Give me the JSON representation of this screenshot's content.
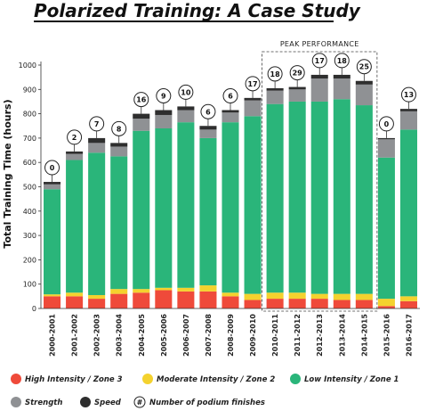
{
  "chart_data": {
    "type": "bar",
    "stacked": true,
    "title": "Polarized Training: A Case Study",
    "ylabel": "Total Training Time (hours)",
    "ylim": [
      0,
      1000
    ],
    "yticks": [
      0,
      100,
      200,
      300,
      400,
      500,
      600,
      700,
      800,
      900,
      1000
    ],
    "categories": [
      "2000-2001",
      "2001-2002",
      "2002-2003",
      "2003-2004",
      "2004-2005",
      "2005-2006",
      "2006-2007",
      "2007-2008",
      "2008-2009",
      "2009-2010",
      "2010-2011",
      "2011-2012",
      "2012-2013",
      "2013-2014",
      "2014-2015",
      "2015-2016",
      "2016-2017"
    ],
    "series": [
      {
        "name": "High Intensity / Zone 3",
        "color": "#ef4a3a",
        "values": [
          50,
          50,
          40,
          60,
          65,
          75,
          70,
          70,
          50,
          35,
          40,
          40,
          40,
          35,
          35,
          10,
          30
        ]
      },
      {
        "name": "Moderate Intensity / Zone 2",
        "color": "#f4d22e",
        "values": [
          8,
          15,
          15,
          20,
          15,
          10,
          15,
          25,
          15,
          25,
          25,
          25,
          20,
          25,
          25,
          30,
          20
        ]
      },
      {
        "name": "Low Intensity / Zone 1",
        "color": "#2ab57a",
        "values": [
          432,
          545,
          585,
          545,
          650,
          655,
          680,
          605,
          700,
          730,
          775,
          785,
          790,
          800,
          775,
          580,
          685
        ]
      },
      {
        "name": "Strength",
        "color": "#8f9194",
        "values": [
          20,
          25,
          40,
          40,
          50,
          55,
          50,
          35,
          40,
          65,
          55,
          50,
          95,
          85,
          85,
          75,
          75
        ]
      },
      {
        "name": "Speed",
        "color": "#2e2e2e",
        "values": [
          10,
          10,
          20,
          15,
          20,
          20,
          15,
          15,
          10,
          10,
          10,
          10,
          15,
          15,
          15,
          5,
          10
        ]
      }
    ],
    "podium_finishes": [
      0,
      2,
      7,
      8,
      16,
      9,
      10,
      6,
      6,
      17,
      18,
      29,
      17,
      18,
      25,
      0,
      13
    ],
    "annotation": {
      "label": "PEAK PERFORMANCE",
      "from": "2010-2011",
      "to": "2014-2015"
    },
    "legend": {
      "placement": "bottom",
      "podium_label": "Number of podium finishes",
      "podium_symbol": "#"
    },
    "grid": false
  }
}
